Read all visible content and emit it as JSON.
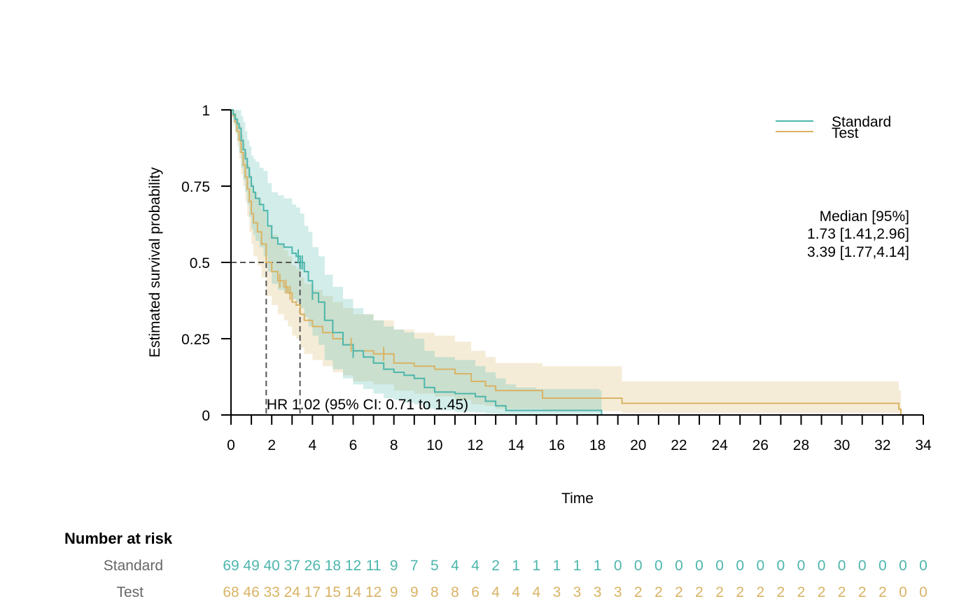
{
  "chart_data": {
    "type": "line",
    "subtype": "kaplan-meier",
    "xlabel": "Time",
    "ylabel": "Estimated survival probability",
    "xlim": [
      0,
      34
    ],
    "ylim": [
      0,
      1
    ],
    "x_ticks": [
      0,
      2,
      4,
      6,
      8,
      10,
      12,
      14,
      16,
      18,
      20,
      22,
      24,
      26,
      28,
      30,
      32,
      34
    ],
    "x_tick_labels": [
      "0",
      "2",
      "4",
      "6",
      "8",
      "10",
      "12",
      "14",
      "16",
      "18",
      "20",
      "22",
      "24",
      "26",
      "28",
      "30",
      "32",
      "34"
    ],
    "y_ticks": [
      0,
      0.25,
      0.5,
      0.75,
      1
    ],
    "y_tick_labels": [
      "0",
      "0.25",
      "0.5",
      "0.75",
      "1"
    ],
    "grid": false,
    "legend_position": "top-right",
    "series": [
      {
        "name": "Standard",
        "color": "#4DB6AC",
        "times": [
          0,
          0.1,
          0.2,
          0.3,
          0.4,
          0.5,
          0.6,
          0.7,
          0.8,
          0.9,
          1.0,
          1.1,
          1.2,
          1.4,
          1.6,
          1.8,
          2.0,
          2.3,
          2.6,
          3.0,
          3.2,
          3.4,
          3.6,
          3.8,
          4.0,
          4.3,
          4.6,
          5.0,
          5.5,
          6.0,
          6.5,
          7.0,
          7.5,
          8.0,
          8.5,
          9.0,
          9.5,
          10.0,
          11.0,
          12.0,
          12.5,
          13.0,
          13.5,
          14.0,
          15.0,
          16.0,
          18.1,
          18.2
        ],
        "survival": [
          1.0,
          0.985,
          0.97,
          0.955,
          0.94,
          0.9,
          0.87,
          0.84,
          0.81,
          0.78,
          0.75,
          0.73,
          0.71,
          0.69,
          0.67,
          0.62,
          0.58,
          0.56,
          0.55,
          0.53,
          0.52,
          0.5,
          0.47,
          0.44,
          0.4,
          0.37,
          0.31,
          0.27,
          0.23,
          0.21,
          0.19,
          0.17,
          0.15,
          0.14,
          0.13,
          0.12,
          0.09,
          0.075,
          0.07,
          0.06,
          0.045,
          0.03,
          0.015,
          0.015,
          0.015,
          0.015,
          0.015,
          0.0
        ],
        "ci_lower": [
          1.0,
          0.96,
          0.93,
          0.9,
          0.86,
          0.81,
          0.77,
          0.73,
          0.69,
          0.65,
          0.61,
          0.59,
          0.57,
          0.55,
          0.52,
          0.47,
          0.43,
          0.41,
          0.4,
          0.38,
          0.37,
          0.35,
          0.32,
          0.29,
          0.26,
          0.23,
          0.18,
          0.15,
          0.12,
          0.1,
          0.085,
          0.07,
          0.055,
          0.05,
          0.04,
          0.035,
          0.02,
          0.015,
          0.01,
          0.008,
          0.004,
          0.002,
          0.0,
          0.0,
          0.0,
          0.0,
          0.0,
          0.0
        ],
        "ci_upper": [
          1.0,
          1.0,
          1.0,
          1.0,
          1.0,
          0.98,
          0.96,
          0.93,
          0.9,
          0.88,
          0.85,
          0.84,
          0.83,
          0.81,
          0.8,
          0.76,
          0.73,
          0.72,
          0.71,
          0.69,
          0.68,
          0.66,
          0.62,
          0.6,
          0.55,
          0.52,
          0.46,
          0.42,
          0.38,
          0.35,
          0.33,
          0.31,
          0.29,
          0.28,
          0.27,
          0.25,
          0.21,
          0.19,
          0.18,
          0.16,
          0.14,
          0.12,
          0.1,
          0.09,
          0.085,
          0.085,
          0.08,
          0.0
        ],
        "censor_times": [
          3.3,
          3.4,
          3.5,
          4.0,
          6.0
        ],
        "median": "3.39 [1.77,4.14]",
        "risk_counts": [
          "69",
          "49",
          "40",
          "37",
          "26",
          "18",
          "12",
          "11",
          "9",
          "7",
          "5",
          "4",
          "4",
          "2",
          "1",
          "1",
          "1",
          "1",
          "1",
          "0",
          "0",
          "0",
          "0",
          "0",
          "0",
          "0",
          "0",
          "0",
          "0",
          "0",
          "0",
          "0",
          "0",
          "0",
          "0"
        ]
      },
      {
        "name": "Test",
        "color": "#D9B365",
        "times": [
          0,
          0.1,
          0.2,
          0.3,
          0.4,
          0.5,
          0.6,
          0.7,
          0.8,
          0.9,
          1.0,
          1.1,
          1.3,
          1.5,
          1.73,
          2.0,
          2.3,
          2.6,
          2.8,
          3.0,
          3.2,
          3.4,
          3.6,
          4.0,
          4.5,
          5.0,
          5.5,
          6.0,
          7.0,
          8.0,
          9.0,
          10.0,
          11.0,
          11.8,
          12.5,
          13.0,
          15.3,
          19.2,
          32.6,
          32.8,
          32.9
        ],
        "survival": [
          1.0,
          0.98,
          0.96,
          0.93,
          0.9,
          0.86,
          0.82,
          0.78,
          0.74,
          0.7,
          0.66,
          0.63,
          0.6,
          0.56,
          0.5,
          0.47,
          0.44,
          0.42,
          0.4,
          0.37,
          0.36,
          0.33,
          0.31,
          0.29,
          0.27,
          0.25,
          0.23,
          0.21,
          0.2,
          0.17,
          0.16,
          0.15,
          0.135,
          0.11,
          0.095,
          0.08,
          0.055,
          0.038,
          0.038,
          0.019,
          0.0
        ],
        "ci_lower": [
          1.0,
          0.95,
          0.92,
          0.88,
          0.84,
          0.79,
          0.75,
          0.7,
          0.65,
          0.6,
          0.56,
          0.52,
          0.49,
          0.45,
          0.39,
          0.36,
          0.33,
          0.31,
          0.29,
          0.26,
          0.25,
          0.22,
          0.2,
          0.18,
          0.16,
          0.14,
          0.13,
          0.11,
          0.1,
          0.08,
          0.07,
          0.06,
          0.05,
          0.035,
          0.03,
          0.02,
          0.012,
          0.006,
          0.006,
          0.002,
          0.0
        ],
        "ci_upper": [
          1.0,
          1.0,
          0.99,
          0.97,
          0.95,
          0.92,
          0.89,
          0.86,
          0.82,
          0.79,
          0.76,
          0.73,
          0.71,
          0.67,
          0.62,
          0.59,
          0.56,
          0.54,
          0.52,
          0.49,
          0.48,
          0.45,
          0.43,
          0.41,
          0.39,
          0.37,
          0.35,
          0.33,
          0.31,
          0.28,
          0.27,
          0.26,
          0.24,
          0.21,
          0.19,
          0.17,
          0.16,
          0.11,
          0.11,
          0.08,
          0.0
        ],
        "censor_times": [
          2.4,
          2.7,
          2.9,
          5.9,
          7.5
        ],
        "median": "1.73 [1.41,2.96]",
        "risk_counts": [
          "68",
          "46",
          "33",
          "24",
          "17",
          "15",
          "14",
          "12",
          "9",
          "9",
          "8",
          "8",
          "6",
          "4",
          "4",
          "4",
          "3",
          "3",
          "3",
          "3",
          "2",
          "2",
          "2",
          "2",
          "2",
          "2",
          "2",
          "2",
          "2",
          "2",
          "2",
          "2",
          "2",
          "0",
          "0"
        ]
      }
    ],
    "median_lines": [
      1.73,
      3.39
    ],
    "median_header": "Median [95%]",
    "hr_annotation": "HR 1.02 (95% CI: 0.71 to 1.45)",
    "risk_table": {
      "title": "Number at risk",
      "row_labels": [
        "Standard",
        "Test"
      ],
      "label_color": "#666666"
    }
  }
}
